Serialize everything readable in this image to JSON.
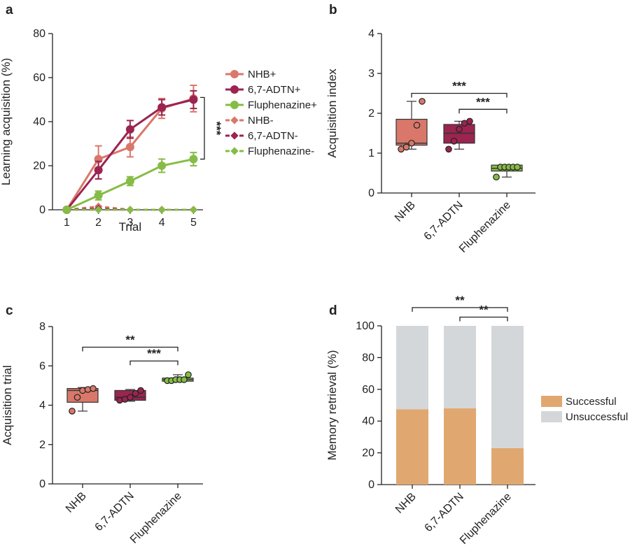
{
  "chart_data": [
    {
      "panel": "a",
      "type": "line",
      "x": [
        1,
        2,
        3,
        4,
        5
      ],
      "xlabel": "Trial",
      "ylabel": "Learning acquisition (%)",
      "ylim": [
        0,
        80
      ],
      "yticks": [
        0,
        20,
        40,
        60,
        80
      ],
      "series": [
        {
          "name": "NHB+",
          "values": [
            0,
            23,
            28.5,
            46,
            50.5
          ],
          "err": [
            0,
            6,
            4.5,
            4.5,
            6
          ],
          "color": "#d9786a",
          "dashed": false,
          "marker": "circle"
        },
        {
          "name": "6,7-ADTN+",
          "values": [
            0,
            18,
            36.5,
            46.5,
            50
          ],
          "err": [
            0,
            4,
            4,
            3.5,
            4
          ],
          "color": "#9b2450",
          "dashed": false,
          "marker": "circle"
        },
        {
          "name": "Fluphenazine+",
          "values": [
            0,
            6.5,
            13,
            20,
            23
          ],
          "err": [
            0,
            2,
            2,
            3,
            3
          ],
          "color": "#86bc46",
          "dashed": false,
          "marker": "circle"
        },
        {
          "name": "NHB-",
          "values": [
            0,
            1.5,
            0,
            0,
            0
          ],
          "color": "#d9786a",
          "dashed": true,
          "marker": "diamond"
        },
        {
          "name": "6,7-ADTN-",
          "values": [
            0,
            0.5,
            0,
            0,
            0
          ],
          "color": "#9b2450",
          "dashed": true,
          "marker": "diamond"
        },
        {
          "name": "Fluphenazine-",
          "values": [
            0,
            0,
            0,
            0,
            0
          ],
          "color": "#86bc46",
          "dashed": true,
          "marker": "diamond"
        }
      ],
      "annotation": "***"
    },
    {
      "panel": "b",
      "type": "box",
      "categories": [
        "NHB",
        "6,7-ADTN",
        "Fluphenazine"
      ],
      "ylabel": "Acquisition index",
      "ylim": [
        0,
        4
      ],
      "yticks": [
        0,
        1,
        2,
        3,
        4
      ],
      "boxes": [
        {
          "min": 1.1,
          "q1": 1.2,
          "median": 1.25,
          "q3": 1.85,
          "max": 2.3,
          "points": [
            1.1,
            1.15,
            1.25,
            1.7,
            2.3
          ],
          "color": "#d9786a"
        },
        {
          "min": 1.1,
          "q1": 1.25,
          "median": 1.5,
          "q3": 1.72,
          "max": 1.8,
          "points": [
            1.1,
            1.3,
            1.6,
            1.75,
            1.8
          ],
          "color": "#9b2450"
        },
        {
          "min": 0.4,
          "q1": 0.55,
          "median": 0.62,
          "q3": 0.7,
          "max": 0.7,
          "points": [
            0.4,
            0.65,
            0.65,
            0.65,
            0.65,
            0.65
          ],
          "color": "#86bc46"
        }
      ],
      "significance": [
        {
          "from": 0,
          "to": 2,
          "value": 2.5,
          "label": "***"
        },
        {
          "from": 1,
          "to": 2,
          "value": 2.1,
          "label": "***"
        }
      ]
    },
    {
      "panel": "c",
      "type": "box",
      "categories": [
        "NHB",
        "6,7-ADTN",
        "Fluphenazine"
      ],
      "ylabel": "Acquisition trial",
      "ylim": [
        0,
        8
      ],
      "yticks": [
        0,
        2,
        4,
        6,
        8
      ],
      "boxes": [
        {
          "min": 3.7,
          "q1": 4.15,
          "median": 4.75,
          "q3": 4.85,
          "max": 4.9,
          "points": [
            3.7,
            4.4,
            4.75,
            4.8,
            4.85
          ],
          "color": "#d9786a"
        },
        {
          "min": 4.2,
          "q1": 4.25,
          "median": 4.4,
          "q3": 4.75,
          "max": 4.8,
          "points": [
            4.25,
            4.3,
            4.4,
            4.6,
            4.75
          ],
          "color": "#9b2450"
        },
        {
          "min": 5.2,
          "q1": 5.22,
          "median": 5.3,
          "q3": 5.38,
          "max": 5.55,
          "points": [
            5.25,
            5.25,
            5.3,
            5.3,
            5.3,
            5.55
          ],
          "color": "#86bc46"
        }
      ],
      "significance": [
        {
          "from": 0,
          "to": 2,
          "value": 6.95,
          "label": "**"
        },
        {
          "from": 1,
          "to": 2,
          "value": 6.25,
          "label": "***"
        }
      ]
    },
    {
      "panel": "d",
      "type": "bar",
      "stacked": true,
      "categories": [
        "NHB",
        "6,7-ADTN",
        "Fluphenazine"
      ],
      "ylabel": "Memory retrieval (%)",
      "ylim": [
        0,
        100
      ],
      "yticks": [
        0,
        20,
        40,
        60,
        80,
        100
      ],
      "series": [
        {
          "name": "Successful",
          "values": [
            47.5,
            48,
            23
          ],
          "color": "#e0a870"
        },
        {
          "name": "Unsuccessful",
          "values": [
            52.5,
            52,
            77
          ],
          "color": "#d4d7da"
        }
      ],
      "significance": [
        {
          "from": 0,
          "to": 2,
          "value": 111.5,
          "label": "**"
        },
        {
          "from": 1,
          "to": 2,
          "value": 105.5,
          "label": "**"
        }
      ]
    }
  ]
}
